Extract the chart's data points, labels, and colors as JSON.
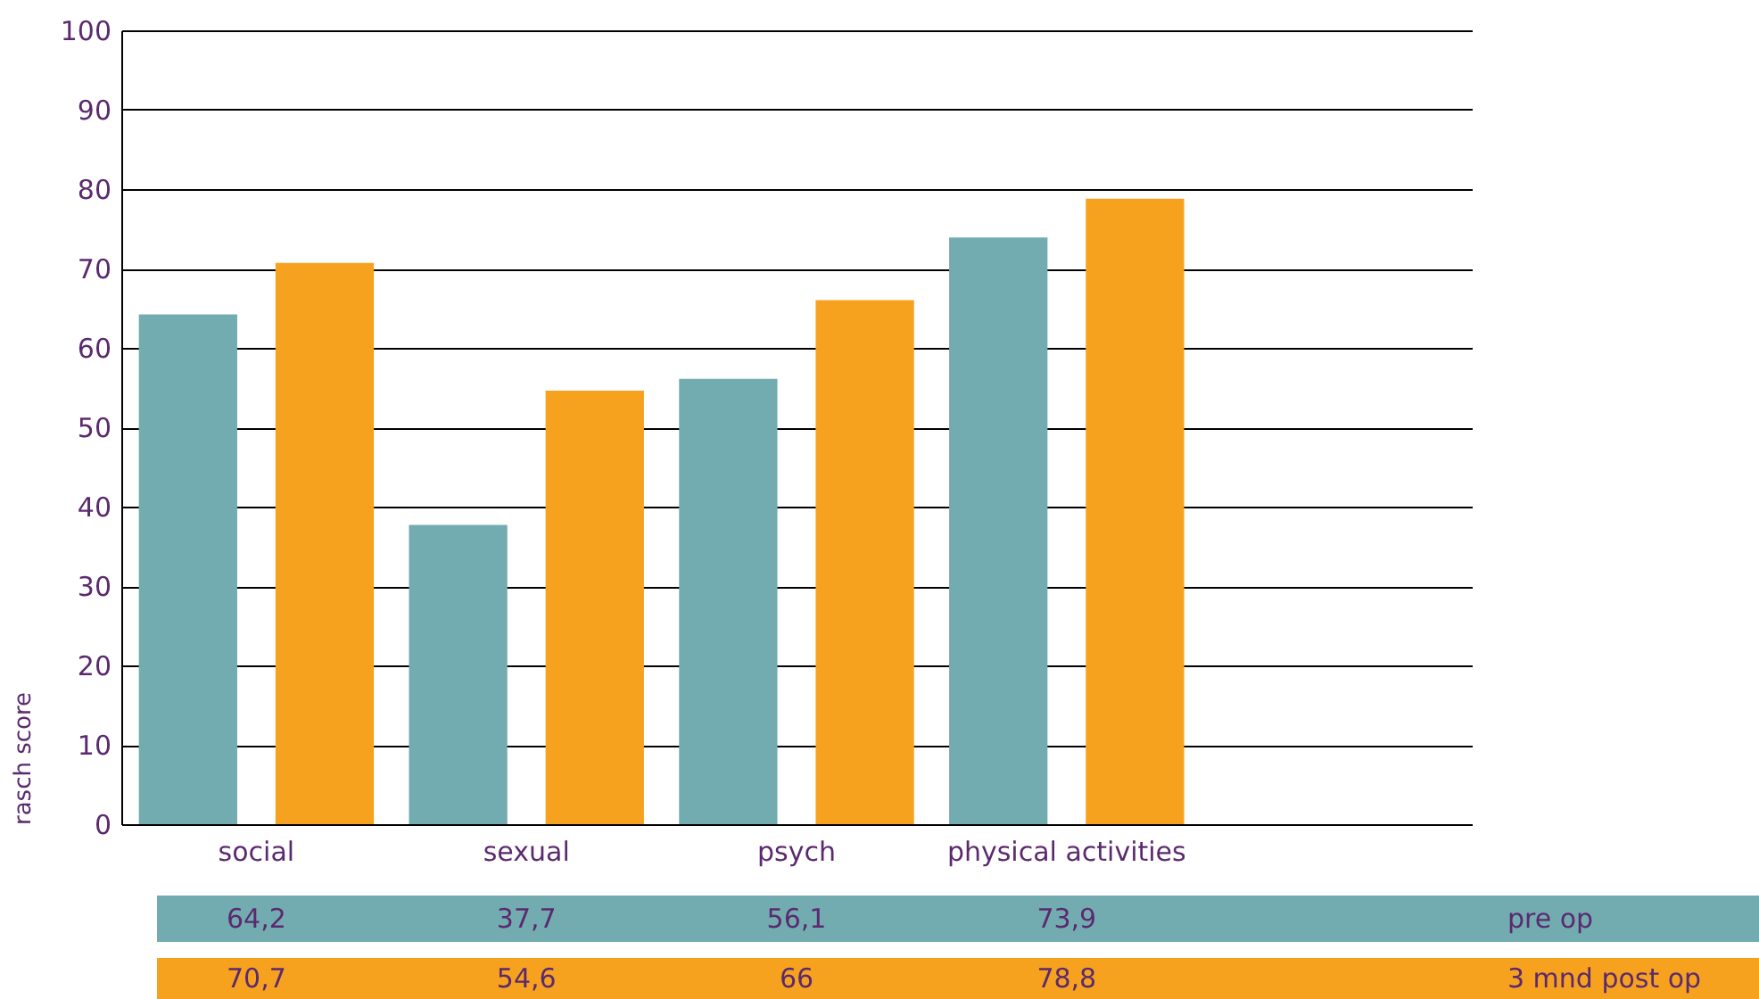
{
  "chart_data": {
    "type": "bar",
    "ylabel": "rasch score",
    "categories": [
      "social",
      "sexual",
      "psych",
      "physical activities",
      null
    ],
    "series": [
      {
        "name": "pre op",
        "color": "#72acb1",
        "values": [
          64.2,
          37.7,
          56.1,
          73.9,
          null
        ],
        "value_labels": [
          "64,2",
          "37,7",
          "56,1",
          "73,9",
          null
        ]
      },
      {
        "name": "3 mnd post op",
        "color": "#f7a21f",
        "values": [
          70.7,
          54.6,
          66,
          78.8,
          null
        ],
        "value_labels": [
          "70,7",
          "54,6",
          "66",
          "78,8",
          null
        ]
      }
    ],
    "ylim": [
      0,
      100
    ],
    "yticks": [
      0,
      10,
      20,
      30,
      40,
      50,
      60,
      70,
      80,
      90,
      100
    ],
    "grid": "y",
    "legend": "bottom right"
  }
}
